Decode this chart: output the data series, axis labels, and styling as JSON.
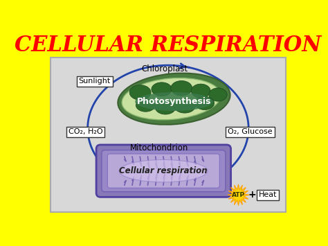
{
  "title": "CELLULAR RESPIRATION",
  "title_color": "#FF0000",
  "title_fontsize": 22,
  "background_color": "#FFFF00",
  "panel_bg": "#d8d8d8",
  "panel_edge": "#aaaaaa",
  "labels": {
    "sunlight": "Sunlight",
    "chloroplast": "Chloroplast",
    "photosynthesis": "Photosynthesis",
    "co2_h2o": "CO₂, H₂O",
    "o2_glucose": "O₂, Glucose",
    "mitochondrion": "Mitochondrion",
    "cellular_resp": "Cellular respiration",
    "atp": "ATP",
    "plus": "+",
    "heat": "Heat"
  },
  "arrow_color": "#2244aa",
  "arrow_color_light": "#6688cc",
  "box_edge_color": "#333333",
  "box_face_color": "#FFFFFF",
  "chloroplast_outer_color": "#4a7c3f",
  "chloroplast_rim_color": "#c8e0a0",
  "chloroplast_inner_color": "#2d6b2a",
  "chloroplast_stroma_color": "#8ab87a",
  "mito_outer_color": "#8878b8",
  "mito_mid_color": "#9888c8",
  "mito_inner_color": "#b8a8d8",
  "mito_center_color": "#d0c0e8",
  "star_color": "#FFD700",
  "star_edge_color": "#FFA000"
}
